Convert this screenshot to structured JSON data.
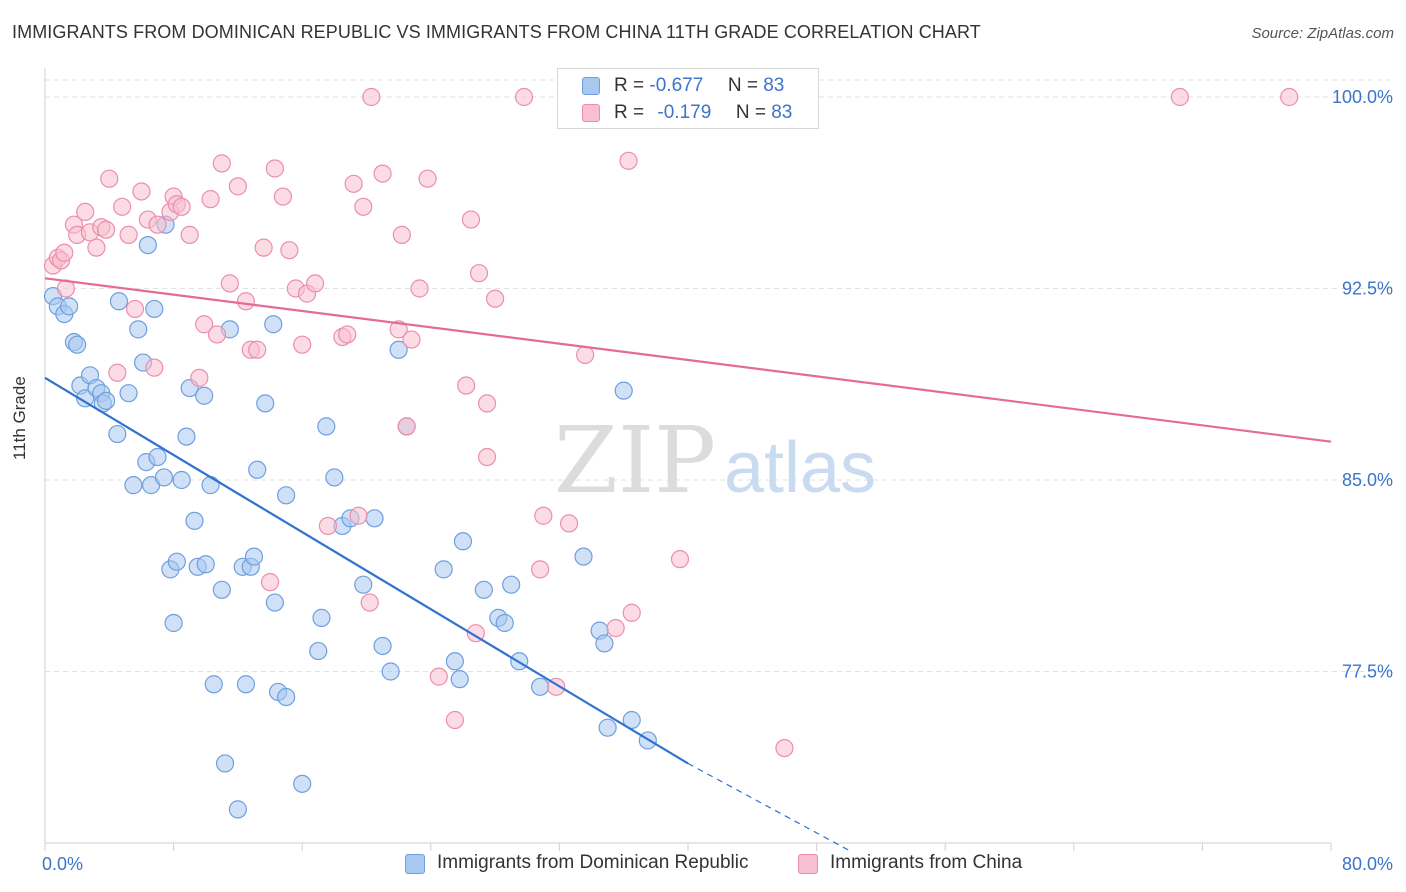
{
  "title": "IMMIGRANTS FROM DOMINICAN REPUBLIC VS IMMIGRANTS FROM CHINA 11TH GRADE CORRELATION CHART",
  "source": "Source: ZipAtlas.com",
  "watermark": {
    "zip": "ZIP",
    "atlas": "atlas"
  },
  "legend_top": [
    {
      "r_label": "R =",
      "r_value": "-0.677",
      "n_label": "N =",
      "n_value": "83"
    },
    {
      "r_label": "R =",
      "r_value": "-0.179",
      "n_label": "N =",
      "n_value": "83"
    }
  ],
  "colors": {
    "blue_fill": "#a9c8f0",
    "blue_stroke": "#6e9fdf",
    "blue_line": "#2f72d2",
    "pink_fill": "#f7bfd0",
    "pink_stroke": "#eb8eac",
    "pink_line": "#e36b95",
    "axis_text": "#3b74c9",
    "grid": "#e2e2e2"
  },
  "chart_data": {
    "type": "scatter",
    "title": "IMMIGRANTS FROM DOMINICAN REPUBLIC VS IMMIGRANTS FROM CHINA 11TH GRADE CORRELATION CHART",
    "xlabel": "",
    "ylabel": "11th Grade",
    "xlim": [
      0,
      80
    ],
    "ylim": [
      70.5,
      101.5
    ],
    "x_tick_labels": [
      "0.0%",
      "80.0%"
    ],
    "y_ticks": [
      77.5,
      85.0,
      92.5,
      100.0
    ],
    "y_tick_labels": [
      "77.5%",
      "85.0%",
      "92.5%",
      "100.0%"
    ],
    "grid": true,
    "legend_position": "bottom",
    "series": [
      {
        "name": "Immigrants from Dominican Republic",
        "color": "#6e9fdf",
        "trend": {
          "x": [
            0,
            40
          ],
          "y": [
            89.0,
            73.9
          ],
          "dashed_to": [
            50,
            70.5
          ]
        },
        "points": [
          [
            0.5,
            92.2
          ],
          [
            0.8,
            91.8
          ],
          [
            1.2,
            91.5
          ],
          [
            1.5,
            91.8
          ],
          [
            1.8,
            90.4
          ],
          [
            2.0,
            90.3
          ],
          [
            2.2,
            88.7
          ],
          [
            2.5,
            88.2
          ],
          [
            2.8,
            89.1
          ],
          [
            3.2,
            88.6
          ],
          [
            3.5,
            88.4
          ],
          [
            3.6,
            88.0
          ],
          [
            3.8,
            88.1
          ],
          [
            4.5,
            86.8
          ],
          [
            4.6,
            92.0
          ],
          [
            5.2,
            88.4
          ],
          [
            5.5,
            84.8
          ],
          [
            5.8,
            90.9
          ],
          [
            6.1,
            89.6
          ],
          [
            6.3,
            85.7
          ],
          [
            6.6,
            84.8
          ],
          [
            6.8,
            91.7
          ],
          [
            7.0,
            85.9
          ],
          [
            7.4,
            85.1
          ],
          [
            7.5,
            95.0
          ],
          [
            7.8,
            81.5
          ],
          [
            8.0,
            79.4
          ],
          [
            8.2,
            81.8
          ],
          [
            8.5,
            85.0
          ],
          [
            8.8,
            86.7
          ],
          [
            9.0,
            88.6
          ],
          [
            9.3,
            83.4
          ],
          [
            9.5,
            81.6
          ],
          [
            9.9,
            88.3
          ],
          [
            10.0,
            81.7
          ],
          [
            10.3,
            84.8
          ],
          [
            10.5,
            77.0
          ],
          [
            11.0,
            80.7
          ],
          [
            11.2,
            73.9
          ],
          [
            11.5,
            90.9
          ],
          [
            12.0,
            72.1
          ],
          [
            12.3,
            81.6
          ],
          [
            12.5,
            77.0
          ],
          [
            12.8,
            81.6
          ],
          [
            13.0,
            82.0
          ],
          [
            13.2,
            85.4
          ],
          [
            13.7,
            88.0
          ],
          [
            14.3,
            80.2
          ],
          [
            14.5,
            76.7
          ],
          [
            15.0,
            84.4
          ],
          [
            15.0,
            76.5
          ],
          [
            16.0,
            73.1
          ],
          [
            17.0,
            78.3
          ],
          [
            17.2,
            79.6
          ],
          [
            17.5,
            87.1
          ],
          [
            18.0,
            85.1
          ],
          [
            18.5,
            83.2
          ],
          [
            19.0,
            83.5
          ],
          [
            19.8,
            80.9
          ],
          [
            20.5,
            83.5
          ],
          [
            21.0,
            78.5
          ],
          [
            21.5,
            77.5
          ],
          [
            22.5,
            87.1
          ],
          [
            24.8,
            81.5
          ],
          [
            25.5,
            77.9
          ],
          [
            25.8,
            77.2
          ],
          [
            26.0,
            82.6
          ],
          [
            27.3,
            80.7
          ],
          [
            28.2,
            79.6
          ],
          [
            28.6,
            79.4
          ],
          [
            29.0,
            80.9
          ],
          [
            29.5,
            77.9
          ],
          [
            30.8,
            76.9
          ],
          [
            33.5,
            82.0
          ],
          [
            34.5,
            79.1
          ],
          [
            34.8,
            78.6
          ],
          [
            35.0,
            75.3
          ],
          [
            36.5,
            75.6
          ],
          [
            37.5,
            74.8
          ],
          [
            36.0,
            88.5
          ],
          [
            22.0,
            90.1
          ],
          [
            14.2,
            91.1
          ],
          [
            6.4,
            94.2
          ]
        ]
      },
      {
        "name": "Immigrants from China",
        "color": "#eb8eac",
        "trend": {
          "x": [
            0,
            80
          ],
          "y": [
            92.9,
            86.5
          ]
        },
        "points": [
          [
            0.5,
            93.4
          ],
          [
            0.8,
            93.7
          ],
          [
            1.0,
            93.6
          ],
          [
            1.3,
            92.5
          ],
          [
            1.8,
            95.0
          ],
          [
            2.0,
            94.6
          ],
          [
            2.5,
            95.5
          ],
          [
            2.8,
            94.7
          ],
          [
            3.2,
            94.1
          ],
          [
            3.5,
            94.9
          ],
          [
            3.8,
            94.8
          ],
          [
            4.5,
            89.2
          ],
          [
            4.8,
            95.7
          ],
          [
            5.2,
            94.6
          ],
          [
            5.6,
            91.7
          ],
          [
            6.0,
            96.3
          ],
          [
            6.4,
            95.2
          ],
          [
            6.8,
            89.4
          ],
          [
            7.0,
            95.0
          ],
          [
            7.8,
            95.5
          ],
          [
            8.0,
            96.1
          ],
          [
            8.2,
            95.8
          ],
          [
            8.5,
            95.7
          ],
          [
            9.0,
            94.6
          ],
          [
            9.6,
            89.0
          ],
          [
            9.9,
            91.1
          ],
          [
            10.3,
            96.0
          ],
          [
            10.7,
            90.7
          ],
          [
            11.0,
            97.4
          ],
          [
            11.5,
            92.7
          ],
          [
            12.0,
            96.5
          ],
          [
            12.5,
            92.0
          ],
          [
            12.8,
            90.1
          ],
          [
            13.2,
            90.1
          ],
          [
            13.6,
            94.1
          ],
          [
            14.0,
            81.0
          ],
          [
            14.3,
            97.2
          ],
          [
            14.8,
            96.1
          ],
          [
            15.2,
            94.0
          ],
          [
            15.6,
            92.5
          ],
          [
            16.0,
            90.3
          ],
          [
            16.3,
            92.3
          ],
          [
            16.8,
            92.7
          ],
          [
            17.6,
            83.2
          ],
          [
            18.5,
            90.6
          ],
          [
            18.8,
            90.7
          ],
          [
            19.2,
            96.6
          ],
          [
            19.5,
            83.6
          ],
          [
            19.8,
            95.7
          ],
          [
            20.2,
            80.2
          ],
          [
            20.3,
            100.0
          ],
          [
            21.0,
            97.0
          ],
          [
            22.0,
            90.9
          ],
          [
            22.2,
            94.6
          ],
          [
            22.5,
            87.1
          ],
          [
            22.8,
            90.5
          ],
          [
            23.3,
            92.5
          ],
          [
            23.8,
            96.8
          ],
          [
            24.5,
            77.3
          ],
          [
            25.5,
            75.6
          ],
          [
            26.2,
            88.7
          ],
          [
            26.5,
            95.2
          ],
          [
            26.8,
            79.0
          ],
          [
            27.0,
            93.1
          ],
          [
            27.5,
            88.0
          ],
          [
            27.5,
            85.9
          ],
          [
            28.0,
            92.1
          ],
          [
            29.8,
            100.0
          ],
          [
            30.8,
            81.5
          ],
          [
            31.0,
            83.6
          ],
          [
            31.8,
            76.9
          ],
          [
            32.6,
            83.3
          ],
          [
            33.1,
            100.0
          ],
          [
            33.6,
            89.9
          ],
          [
            35.5,
            79.2
          ],
          [
            36.3,
            97.5
          ],
          [
            36.5,
            79.8
          ],
          [
            39.5,
            81.9
          ],
          [
            46.0,
            74.5
          ],
          [
            70.6,
            100.0
          ],
          [
            77.4,
            100.0
          ],
          [
            4.0,
            96.8
          ],
          [
            1.2,
            93.9
          ]
        ]
      }
    ]
  },
  "bottom_legend": [
    {
      "label": "Immigrants from Dominican Republic"
    },
    {
      "label": "Immigrants from China"
    }
  ]
}
